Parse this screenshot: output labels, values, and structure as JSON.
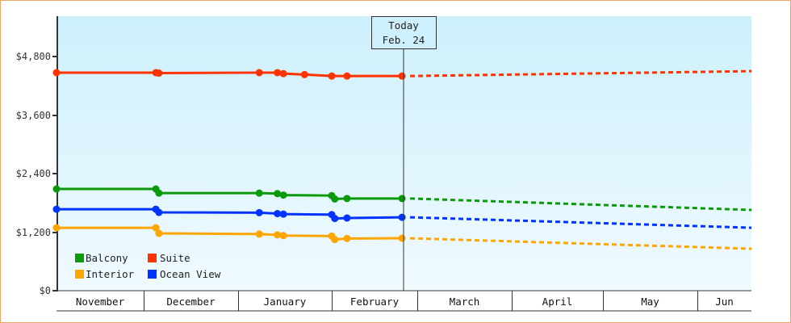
{
  "chart_data": {
    "type": "line",
    "title": "",
    "xlabel": "",
    "ylabel": "",
    "ylim": [
      0,
      5600
    ],
    "y_ticks": [
      "$0",
      "$1,200",
      "$2,400",
      "$3,600",
      "$4,800"
    ],
    "y_tick_values": [
      0,
      1200,
      2400,
      3600,
      4800
    ],
    "x_months": [
      "November",
      "December",
      "January",
      "February",
      "March",
      "April",
      "May",
      "Jun"
    ],
    "today_marker": {
      "line1": "Today",
      "line2": "Feb. 24"
    },
    "legend": [
      {
        "name": "Balcony",
        "color": "#0a9a0a"
      },
      {
        "name": "Suite",
        "color": "#ff3300"
      },
      {
        "name": "Interior",
        "color": "#ffa500"
      },
      {
        "name": "Ocean View",
        "color": "#0033ff"
      }
    ],
    "grid": false,
    "legend_position": "bottom-left inside plot",
    "series": [
      {
        "name": "Suite",
        "color": "#ff3300",
        "historical": [
          {
            "date": "Nov 1",
            "value": 4470
          },
          {
            "date": "Dec 5",
            "value": 4470
          },
          {
            "date": "Dec 6",
            "value": 4460
          },
          {
            "date": "Jan 8",
            "value": 4470
          },
          {
            "date": "Jan 14",
            "value": 4470
          },
          {
            "date": "Jan 16",
            "value": 4450
          },
          {
            "date": "Jan 23",
            "value": 4430
          },
          {
            "date": "Feb 1",
            "value": 4400
          },
          {
            "date": "Feb 6",
            "value": 4400
          },
          {
            "date": "Feb 24",
            "value": 4400
          }
        ],
        "projected_end": {
          "date": "Jun",
          "value": 4500
        }
      },
      {
        "name": "Balcony",
        "color": "#0a9a0a",
        "historical": [
          {
            "date": "Nov 1",
            "value": 2085
          },
          {
            "date": "Dec 5",
            "value": 2085
          },
          {
            "date": "Dec 6",
            "value": 2000
          },
          {
            "date": "Jan 8",
            "value": 2000
          },
          {
            "date": "Jan 14",
            "value": 1990
          },
          {
            "date": "Jan 16",
            "value": 1960
          },
          {
            "date": "Feb 1",
            "value": 1950
          },
          {
            "date": "Feb 2",
            "value": 1880
          },
          {
            "date": "Feb 6",
            "value": 1890
          },
          {
            "date": "Feb 24",
            "value": 1890
          }
        ],
        "projected_end": {
          "date": "Jun",
          "value": 1655
        }
      },
      {
        "name": "Ocean View",
        "color": "#0033ff",
        "historical": [
          {
            "date": "Nov 1",
            "value": 1670
          },
          {
            "date": "Dec 5",
            "value": 1670
          },
          {
            "date": "Dec 6",
            "value": 1605
          },
          {
            "date": "Jan 8",
            "value": 1600
          },
          {
            "date": "Jan 14",
            "value": 1580
          },
          {
            "date": "Jan 16",
            "value": 1570
          },
          {
            "date": "Feb 1",
            "value": 1560
          },
          {
            "date": "Feb 2",
            "value": 1480
          },
          {
            "date": "Feb 6",
            "value": 1490
          },
          {
            "date": "Feb 24",
            "value": 1505
          }
        ],
        "projected_end": {
          "date": "Jun",
          "value": 1290
        }
      },
      {
        "name": "Interior",
        "color": "#ffa500",
        "historical": [
          {
            "date": "Nov 1",
            "value": 1290
          },
          {
            "date": "Dec 5",
            "value": 1290
          },
          {
            "date": "Dec 6",
            "value": 1175
          },
          {
            "date": "Jan 8",
            "value": 1160
          },
          {
            "date": "Jan 14",
            "value": 1145
          },
          {
            "date": "Jan 16",
            "value": 1130
          },
          {
            "date": "Feb 1",
            "value": 1120
          },
          {
            "date": "Feb 2",
            "value": 1050
          },
          {
            "date": "Feb 6",
            "value": 1070
          },
          {
            "date": "Feb 24",
            "value": 1075
          }
        ],
        "projected_end": {
          "date": "Jun",
          "value": 860
        }
      }
    ]
  }
}
